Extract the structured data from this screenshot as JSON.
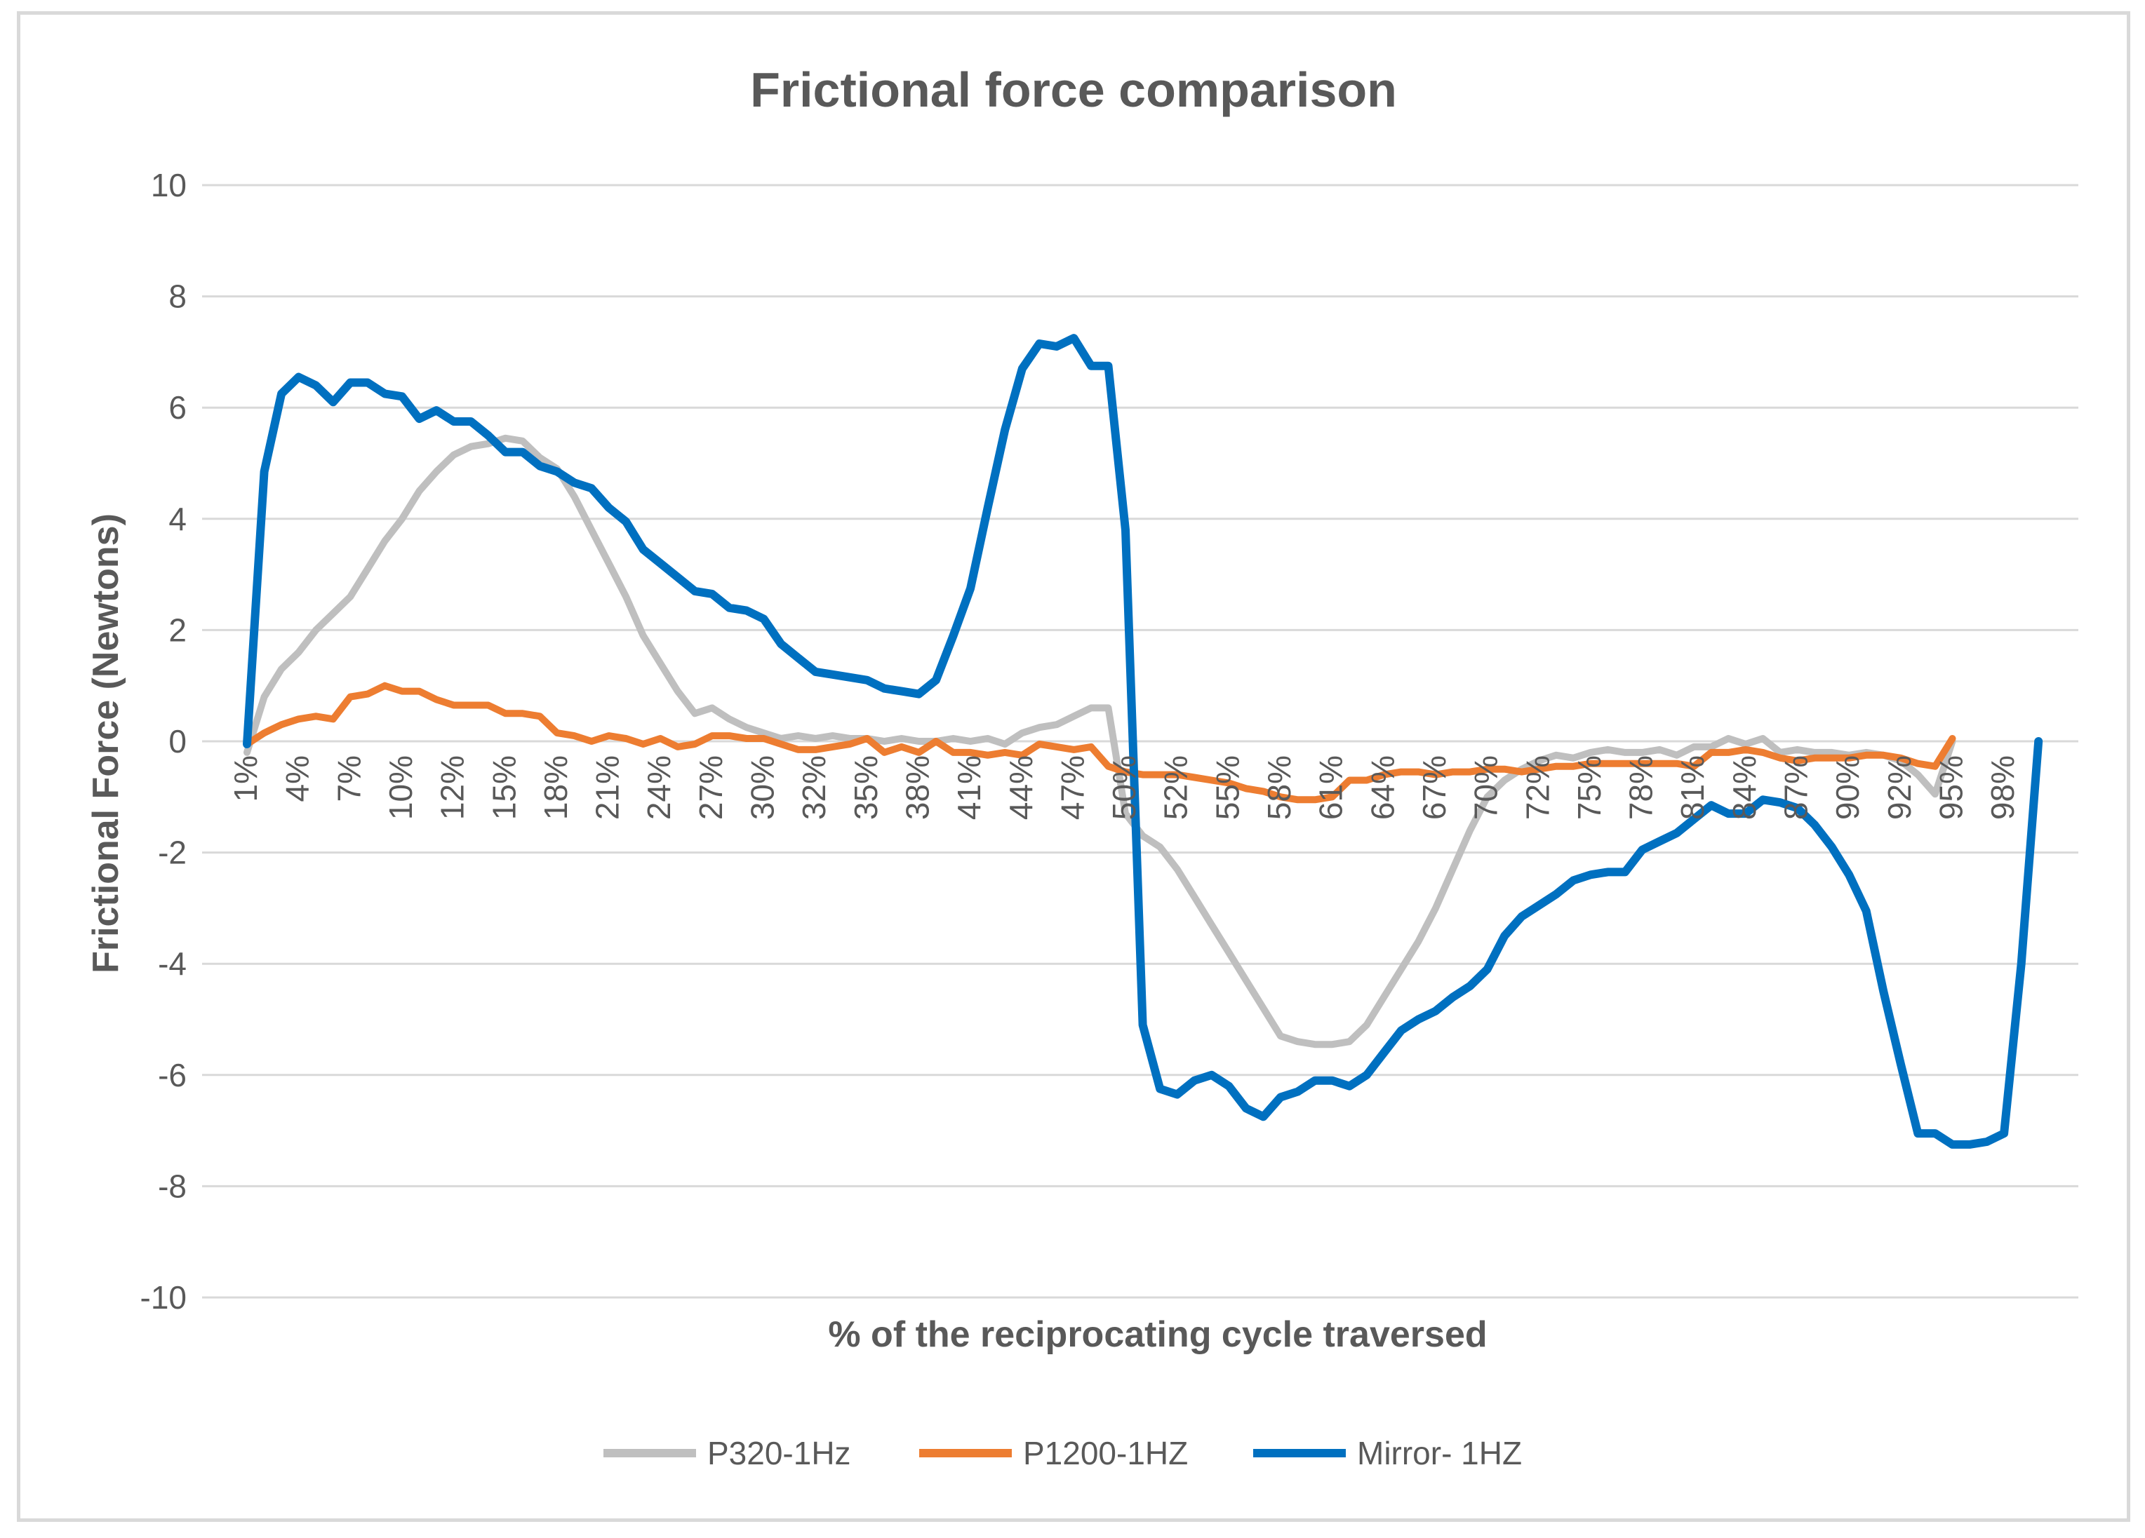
{
  "chart_data": {
    "type": "line",
    "title": "Frictional force comparison",
    "xlabel": "% of the reciprocating cycle traversed",
    "ylabel": "Frictional Force  (Newtons)",
    "ylim": [
      -10,
      10
    ],
    "yticks": [
      10,
      8,
      6,
      4,
      2,
      0,
      -2,
      -4,
      -6,
      -8,
      -10
    ],
    "ytick_labels": [
      "10",
      "8",
      "6",
      "4",
      "2",
      "0",
      "-2",
      "-4",
      "-6",
      "-8",
      "-10"
    ],
    "x_start": 1,
    "x_end": 100,
    "xtick_labels": [
      "1%",
      "4%",
      "7%",
      "10%",
      "12%",
      "15%",
      "18%",
      "21%",
      "24%",
      "27%",
      "30%",
      "32%",
      "35%",
      "38%",
      "41%",
      "44%",
      "47%",
      "50%",
      "52%",
      "55%",
      "58%",
      "61%",
      "64%",
      "67%",
      "70%",
      "72%",
      "75%",
      "78%",
      "81%",
      "84%",
      "87%",
      "90%",
      "92%",
      "95%",
      "98%"
    ],
    "xtick_positions": [
      1,
      4,
      7,
      10,
      13,
      16,
      19,
      22,
      25,
      28,
      31,
      34,
      37,
      40,
      43,
      46,
      49,
      52,
      55,
      58,
      61,
      64,
      67,
      70,
      73,
      76,
      79,
      82,
      85,
      88,
      91,
      94,
      97,
      100,
      103
    ],
    "grid": true,
    "legend_position": "bottom",
    "series": [
      {
        "name": "P320-1Hz",
        "color": "#bfbfbf",
        "points": [
          [
            1,
            -0.2
          ],
          [
            2,
            0.8
          ],
          [
            3,
            1.3
          ],
          [
            4,
            1.6
          ],
          [
            5,
            2.0
          ],
          [
            6,
            2.3
          ],
          [
            7,
            2.6
          ],
          [
            8,
            3.1
          ],
          [
            9,
            3.6
          ],
          [
            10,
            4.0
          ],
          [
            11,
            4.5
          ],
          [
            12,
            4.85
          ],
          [
            13,
            5.15
          ],
          [
            14,
            5.3
          ],
          [
            15,
            5.35
          ],
          [
            16,
            5.45
          ],
          [
            17,
            5.4
          ],
          [
            18,
            5.1
          ],
          [
            19,
            4.9
          ],
          [
            20,
            4.4
          ],
          [
            21,
            3.8
          ],
          [
            22,
            3.2
          ],
          [
            23,
            2.6
          ],
          [
            24,
            1.9
          ],
          [
            25,
            1.4
          ],
          [
            26,
            0.9
          ],
          [
            27,
            0.5
          ],
          [
            28,
            0.6
          ],
          [
            29,
            0.4
          ],
          [
            30,
            0.25
          ],
          [
            31,
            0.15
          ],
          [
            32,
            0.05
          ],
          [
            33,
            0.1
          ],
          [
            34,
            0.05
          ],
          [
            35,
            0.1
          ],
          [
            36,
            0.05
          ],
          [
            37,
            0.05
          ],
          [
            38,
            0.0
          ],
          [
            39,
            0.05
          ],
          [
            40,
            0.0
          ],
          [
            41,
            0.0
          ],
          [
            42,
            0.05
          ],
          [
            43,
            0.0
          ],
          [
            44,
            0.05
          ],
          [
            45,
            -0.05
          ],
          [
            46,
            0.15
          ],
          [
            47,
            0.25
          ],
          [
            48,
            0.3
          ],
          [
            49,
            0.45
          ],
          [
            50,
            0.6
          ],
          [
            51,
            0.6
          ],
          [
            52,
            -1.3
          ],
          [
            53,
            -1.7
          ],
          [
            54,
            -1.9
          ],
          [
            55,
            -2.3
          ],
          [
            56,
            -2.8
          ],
          [
            57,
            -3.3
          ],
          [
            58,
            -3.8
          ],
          [
            59,
            -4.3
          ],
          [
            60,
            -4.8
          ],
          [
            61,
            -5.3
          ],
          [
            62,
            -5.4
          ],
          [
            63,
            -5.45
          ],
          [
            64,
            -5.45
          ],
          [
            65,
            -5.4
          ],
          [
            66,
            -5.1
          ],
          [
            67,
            -4.6
          ],
          [
            68,
            -4.1
          ],
          [
            69,
            -3.6
          ],
          [
            70,
            -3.0
          ],
          [
            71,
            -2.3
          ],
          [
            72,
            -1.6
          ],
          [
            73,
            -1.0
          ],
          [
            74,
            -0.7
          ],
          [
            75,
            -0.5
          ],
          [
            76,
            -0.35
          ],
          [
            77,
            -0.25
          ],
          [
            78,
            -0.3
          ],
          [
            79,
            -0.2
          ],
          [
            80,
            -0.15
          ],
          [
            81,
            -0.2
          ],
          [
            82,
            -0.2
          ],
          [
            83,
            -0.15
          ],
          [
            84,
            -0.25
          ],
          [
            85,
            -0.1
          ],
          [
            86,
            -0.1
          ],
          [
            87,
            0.05
          ],
          [
            88,
            -0.05
          ],
          [
            89,
            0.05
          ],
          [
            90,
            -0.2
          ],
          [
            91,
            -0.15
          ],
          [
            92,
            -0.2
          ],
          [
            93,
            -0.2
          ],
          [
            94,
            -0.25
          ],
          [
            95,
            -0.2
          ],
          [
            96,
            -0.25
          ],
          [
            97,
            -0.35
          ],
          [
            98,
            -0.6
          ],
          [
            99,
            -0.95
          ],
          [
            100,
            0.0
          ]
        ]
      },
      {
        "name": "P1200-1HZ",
        "color": "#ed7d31",
        "points": [
          [
            1,
            -0.05
          ],
          [
            2,
            0.15
          ],
          [
            3,
            0.3
          ],
          [
            4,
            0.4
          ],
          [
            5,
            0.45
          ],
          [
            6,
            0.4
          ],
          [
            7,
            0.8
          ],
          [
            8,
            0.85
          ],
          [
            9,
            1.0
          ],
          [
            10,
            0.9
          ],
          [
            11,
            0.9
          ],
          [
            12,
            0.75
          ],
          [
            13,
            0.65
          ],
          [
            14,
            0.65
          ],
          [
            15,
            0.65
          ],
          [
            16,
            0.5
          ],
          [
            17,
            0.5
          ],
          [
            18,
            0.45
          ],
          [
            19,
            0.15
          ],
          [
            20,
            0.1
          ],
          [
            21,
            0.0
          ],
          [
            22,
            0.1
          ],
          [
            23,
            0.05
          ],
          [
            24,
            -0.05
          ],
          [
            25,
            0.05
          ],
          [
            26,
            -0.1
          ],
          [
            27,
            -0.05
          ],
          [
            28,
            0.1
          ],
          [
            29,
            0.1
          ],
          [
            30,
            0.05
          ],
          [
            31,
            0.05
          ],
          [
            32,
            -0.05
          ],
          [
            33,
            -0.15
          ],
          [
            34,
            -0.15
          ],
          [
            35,
            -0.1
          ],
          [
            36,
            -0.05
          ],
          [
            37,
            0.05
          ],
          [
            38,
            -0.2
          ],
          [
            39,
            -0.1
          ],
          [
            40,
            -0.2
          ],
          [
            41,
            0.0
          ],
          [
            42,
            -0.2
          ],
          [
            43,
            -0.2
          ],
          [
            44,
            -0.25
          ],
          [
            45,
            -0.2
          ],
          [
            46,
            -0.25
          ],
          [
            47,
            -0.05
          ],
          [
            48,
            -0.1
          ],
          [
            49,
            -0.15
          ],
          [
            50,
            -0.1
          ],
          [
            51,
            -0.45
          ],
          [
            52,
            -0.55
          ],
          [
            53,
            -0.6
          ],
          [
            54,
            -0.6
          ],
          [
            55,
            -0.6
          ],
          [
            56,
            -0.65
          ],
          [
            57,
            -0.7
          ],
          [
            58,
            -0.75
          ],
          [
            59,
            -0.85
          ],
          [
            60,
            -0.9
          ],
          [
            61,
            -1.0
          ],
          [
            62,
            -1.05
          ],
          [
            63,
            -1.05
          ],
          [
            64,
            -1.0
          ],
          [
            65,
            -0.7
          ],
          [
            66,
            -0.7
          ],
          [
            67,
            -0.6
          ],
          [
            68,
            -0.55
          ],
          [
            69,
            -0.55
          ],
          [
            70,
            -0.6
          ],
          [
            71,
            -0.55
          ],
          [
            72,
            -0.55
          ],
          [
            73,
            -0.5
          ],
          [
            74,
            -0.5
          ],
          [
            75,
            -0.55
          ],
          [
            76,
            -0.5
          ],
          [
            77,
            -0.45
          ],
          [
            78,
            -0.45
          ],
          [
            79,
            -0.4
          ],
          [
            80,
            -0.4
          ],
          [
            81,
            -0.4
          ],
          [
            82,
            -0.4
          ],
          [
            83,
            -0.4
          ],
          [
            84,
            -0.4
          ],
          [
            85,
            -0.45
          ],
          [
            86,
            -0.2
          ],
          [
            87,
            -0.2
          ],
          [
            88,
            -0.15
          ],
          [
            89,
            -0.2
          ],
          [
            90,
            -0.3
          ],
          [
            91,
            -0.35
          ],
          [
            92,
            -0.3
          ],
          [
            93,
            -0.3
          ],
          [
            94,
            -0.3
          ],
          [
            95,
            -0.25
          ],
          [
            96,
            -0.25
          ],
          [
            97,
            -0.3
          ],
          [
            98,
            -0.4
          ],
          [
            99,
            -0.45
          ],
          [
            100,
            0.05
          ]
        ]
      },
      {
        "name": "Mirror- 1HZ",
        "color": "#0070c0",
        "points": [
          [
            1,
            -0.05
          ],
          [
            2,
            4.85
          ],
          [
            3,
            6.25
          ],
          [
            4,
            6.55
          ],
          [
            5,
            6.4
          ],
          [
            6,
            6.1
          ],
          [
            7,
            6.45
          ],
          [
            8,
            6.45
          ],
          [
            9,
            6.25
          ],
          [
            10,
            6.2
          ],
          [
            11,
            5.8
          ],
          [
            12,
            5.95
          ],
          [
            13,
            5.75
          ],
          [
            14,
            5.75
          ],
          [
            15,
            5.5
          ],
          [
            16,
            5.2
          ],
          [
            17,
            5.2
          ],
          [
            18,
            4.95
          ],
          [
            19,
            4.85
          ],
          [
            20,
            4.65
          ],
          [
            21,
            4.55
          ],
          [
            22,
            4.2
          ],
          [
            23,
            3.95
          ],
          [
            24,
            3.45
          ],
          [
            25,
            3.2
          ],
          [
            26,
            2.95
          ],
          [
            27,
            2.7
          ],
          [
            28,
            2.65
          ],
          [
            29,
            2.4
          ],
          [
            30,
            2.35
          ],
          [
            31,
            2.2
          ],
          [
            32,
            1.75
          ],
          [
            33,
            1.5
          ],
          [
            34,
            1.25
          ],
          [
            35,
            1.2
          ],
          [
            36,
            1.15
          ],
          [
            37,
            1.1
          ],
          [
            38,
            0.95
          ],
          [
            39,
            0.9
          ],
          [
            40,
            0.85
          ],
          [
            41,
            1.1
          ],
          [
            42,
            1.9
          ],
          [
            43,
            2.75
          ],
          [
            44,
            4.2
          ],
          [
            45,
            5.6
          ],
          [
            46,
            6.7
          ],
          [
            47,
            7.15
          ],
          [
            48,
            7.1
          ],
          [
            49,
            7.25
          ],
          [
            50,
            6.75
          ],
          [
            51,
            6.75
          ],
          [
            52,
            3.8
          ],
          [
            53,
            -5.1
          ],
          [
            54,
            -6.25
          ],
          [
            55,
            -6.35
          ],
          [
            56,
            -6.1
          ],
          [
            57,
            -6.0
          ],
          [
            58,
            -6.2
          ],
          [
            59,
            -6.6
          ],
          [
            60,
            -6.75
          ],
          [
            61,
            -6.4
          ],
          [
            62,
            -6.3
          ],
          [
            63,
            -6.1
          ],
          [
            64,
            -6.1
          ],
          [
            65,
            -6.2
          ],
          [
            66,
            -6.0
          ],
          [
            67,
            -5.6
          ],
          [
            68,
            -5.2
          ],
          [
            69,
            -5.0
          ],
          [
            70,
            -4.85
          ],
          [
            71,
            -4.6
          ],
          [
            72,
            -4.4
          ],
          [
            73,
            -4.1
          ],
          [
            74,
            -3.5
          ],
          [
            75,
            -3.15
          ],
          [
            76,
            -2.95
          ],
          [
            77,
            -2.75
          ],
          [
            78,
            -2.5
          ],
          [
            79,
            -2.4
          ],
          [
            80,
            -2.35
          ],
          [
            81,
            -2.35
          ],
          [
            82,
            -1.95
          ],
          [
            83,
            -1.8
          ],
          [
            84,
            -1.65
          ],
          [
            85,
            -1.4
          ],
          [
            86,
            -1.15
          ],
          [
            87,
            -1.3
          ],
          [
            88,
            -1.3
          ],
          [
            89,
            -1.05
          ],
          [
            90,
            -1.1
          ],
          [
            91,
            -1.2
          ],
          [
            92,
            -1.5
          ],
          [
            93,
            -1.9
          ],
          [
            94,
            -2.4
          ],
          [
            95,
            -3.05
          ],
          [
            96,
            -4.5
          ],
          [
            97,
            -5.8
          ],
          [
            98,
            -7.05
          ],
          [
            99,
            -7.05
          ],
          [
            100,
            -7.25
          ],
          [
            101,
            -7.25
          ],
          [
            102,
            -7.2
          ],
          [
            103,
            -7.05
          ],
          [
            104,
            -4.0
          ],
          [
            105,
            0.0
          ]
        ]
      }
    ]
  }
}
